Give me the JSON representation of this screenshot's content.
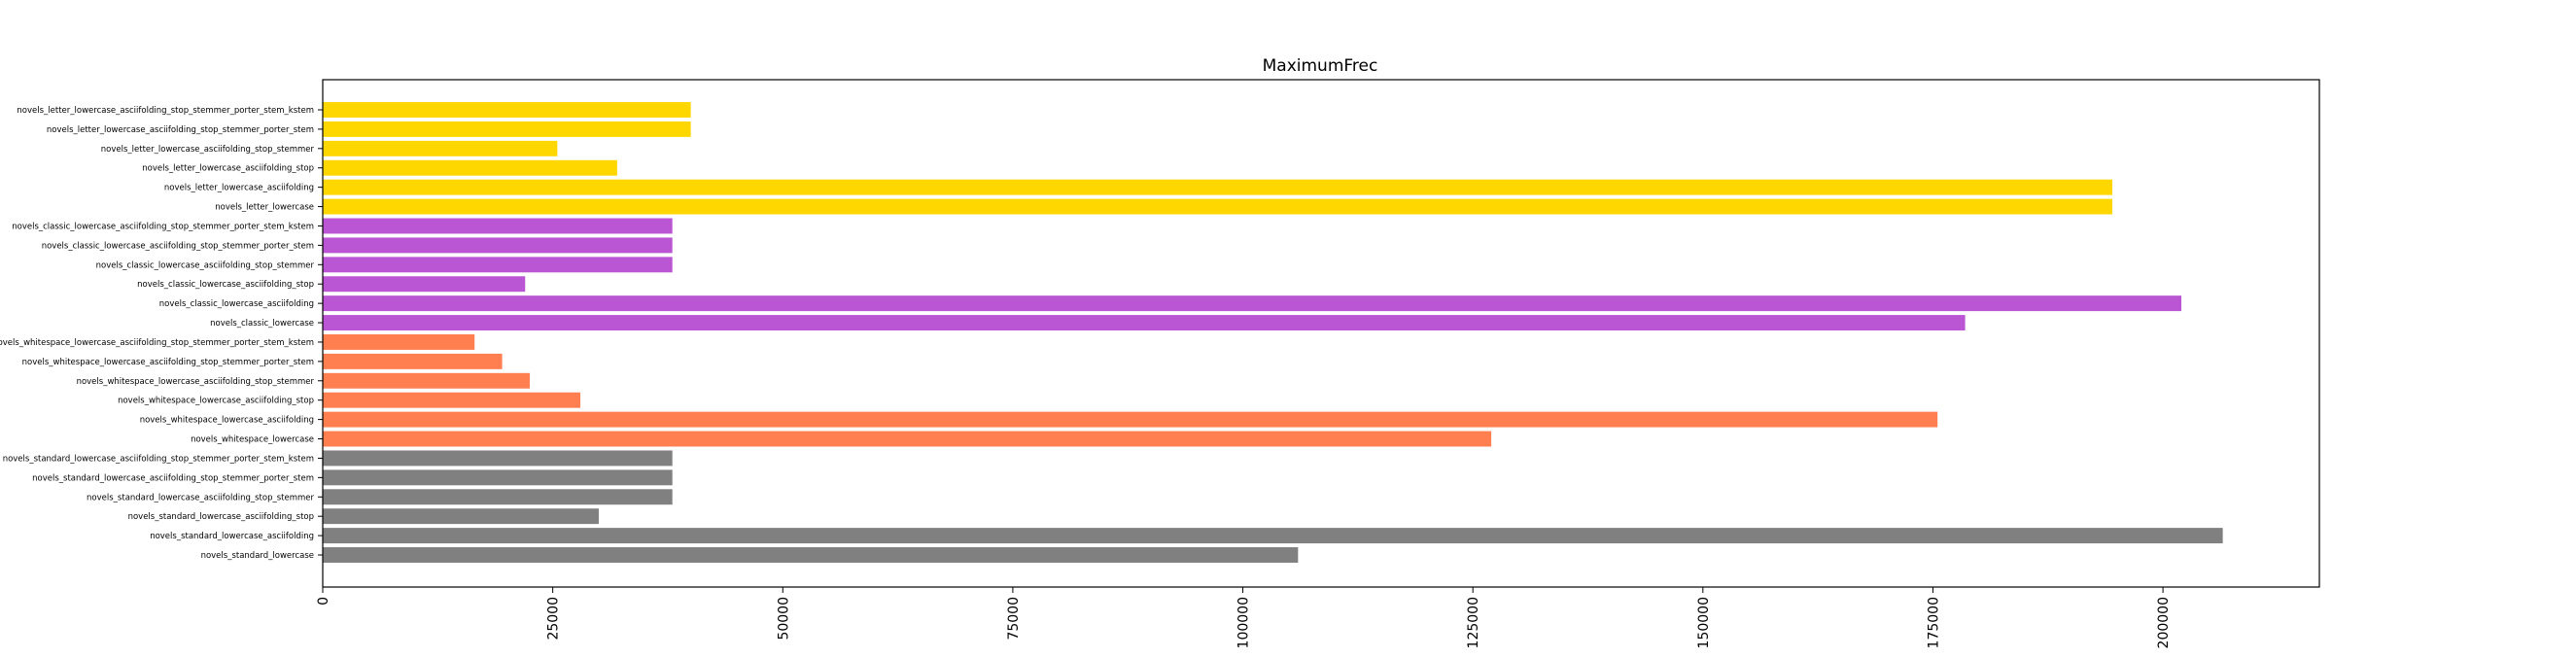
{
  "chart_data": {
    "type": "bar",
    "orientation": "horizontal",
    "title": "MaximumFrec",
    "xlabel": "",
    "ylabel": "",
    "xlim": [
      0,
      217000
    ],
    "xticks": [
      0,
      25000,
      50000,
      75000,
      100000,
      125000,
      150000,
      175000,
      200000
    ],
    "xtick_labels": [
      "0",
      "25000",
      "50000",
      "75000",
      "100000",
      "125000",
      "150000",
      "175000",
      "200000"
    ],
    "grid": false,
    "bars": [
      {
        "category": "novels_standard_lowercase",
        "value": 106000,
        "color": "#808080"
      },
      {
        "category": "novels_standard_lowercase_asciifolding",
        "value": 206500,
        "color": "#808080"
      },
      {
        "category": "novels_standard_lowercase_asciifolding_stop",
        "value": 30000,
        "color": "#808080"
      },
      {
        "category": "novels_standard_lowercase_asciifolding_stop_stemmer",
        "value": 38000,
        "color": "#808080"
      },
      {
        "category": "novels_standard_lowercase_asciifolding_stop_stemmer_porter_stem",
        "value": 38000,
        "color": "#808080"
      },
      {
        "category": "novels_standard_lowercase_asciifolding_stop_stemmer_porter_stem_kstem",
        "value": 38000,
        "color": "#808080"
      },
      {
        "category": "novels_whitespace_lowercase",
        "value": 127000,
        "color": "#ff7f50"
      },
      {
        "category": "novels_whitespace_lowercase_asciifolding",
        "value": 175500,
        "color": "#ff7f50"
      },
      {
        "category": "novels_whitespace_lowercase_asciifolding_stop",
        "value": 28000,
        "color": "#ff7f50"
      },
      {
        "category": "novels_whitespace_lowercase_asciifolding_stop_stemmer",
        "value": 22500,
        "color": "#ff7f50"
      },
      {
        "category": "novels_whitespace_lowercase_asciifolding_stop_stemmer_porter_stem",
        "value": 19500,
        "color": "#ff7f50"
      },
      {
        "category": "novels_whitespace_lowercase_asciifolding_stop_stemmer_porter_stem_kstem",
        "value": 16500,
        "color": "#ff7f50"
      },
      {
        "category": "novels_classic_lowercase",
        "value": 178500,
        "color": "#ba55d3"
      },
      {
        "category": "novels_classic_lowercase_asciifolding",
        "value": 202000,
        "color": "#ba55d3"
      },
      {
        "category": "novels_classic_lowercase_asciifolding_stop",
        "value": 22000,
        "color": "#ba55d3"
      },
      {
        "category": "novels_classic_lowercase_asciifolding_stop_stemmer",
        "value": 38000,
        "color": "#ba55d3"
      },
      {
        "category": "novels_classic_lowercase_asciifolding_stop_stemmer_porter_stem",
        "value": 38000,
        "color": "#ba55d3"
      },
      {
        "category": "novels_classic_lowercase_asciifolding_stop_stemmer_porter_stem_kstem",
        "value": 38000,
        "color": "#ba55d3"
      },
      {
        "category": "novels_letter_lowercase",
        "value": 194500,
        "color": "#ffd700"
      },
      {
        "category": "novels_letter_lowercase_asciifolding",
        "value": 194500,
        "color": "#ffd700"
      },
      {
        "category": "novels_letter_lowercase_asciifolding_stop",
        "value": 32000,
        "color": "#ffd700"
      },
      {
        "category": "novels_letter_lowercase_asciifolding_stop_stemmer",
        "value": 25500,
        "color": "#ffd700"
      },
      {
        "category": "novels_letter_lowercase_asciifolding_stop_stemmer_porter_stem",
        "value": 40000,
        "color": "#ffd700"
      },
      {
        "category": "novels_letter_lowercase_asciifolding_stop_stemmer_porter_stem_kstem",
        "value": 40000,
        "color": "#ffd700"
      }
    ]
  }
}
